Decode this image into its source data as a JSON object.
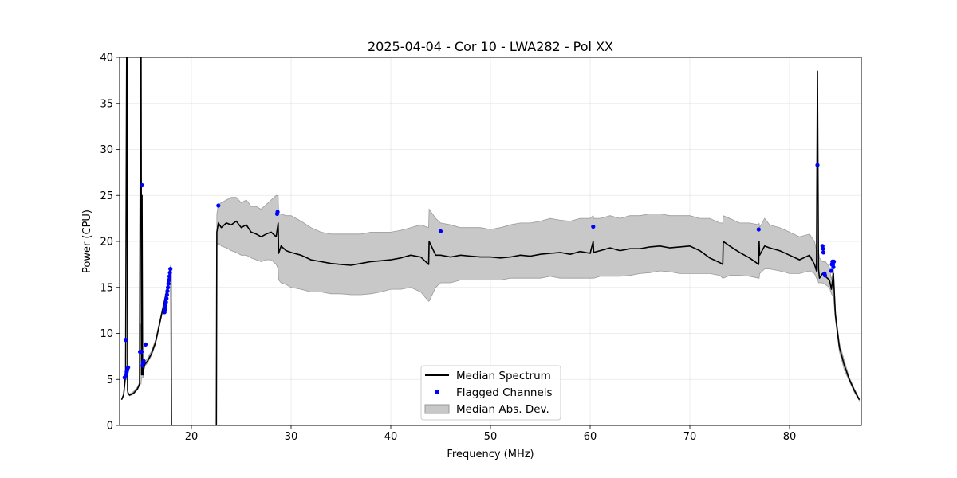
{
  "chart_data": {
    "type": "line",
    "title": "2025-04-04 - Cor 10 - LWA282 - Pol XX",
    "xlabel": "Frequency (MHz)",
    "ylabel": "Power (CPU)",
    "xlim": [
      12.8,
      87.2
    ],
    "ylim": [
      0,
      40
    ],
    "xticks": [
      20,
      30,
      40,
      50,
      60,
      70,
      80
    ],
    "yticks": [
      0,
      5,
      10,
      15,
      20,
      25,
      30,
      35,
      40
    ],
    "grid": true,
    "legend": {
      "placement": "bottom-center",
      "entries": [
        "Median Spectrum",
        "Flagged Channels",
        "Median Abs. Dev."
      ]
    },
    "colors": {
      "line": "#000000",
      "flagged": "#0000ff",
      "band_fill": "#c8c8c8",
      "band_edge": "#9a9a9a"
    },
    "series": [
      {
        "name": "Median Spectrum",
        "x": [
          13.0,
          13.2,
          13.4,
          13.5,
          13.55,
          13.6,
          13.65,
          13.8,
          14.2,
          14.6,
          14.8,
          14.9,
          14.95,
          15.0,
          15.05,
          15.1,
          15.15,
          15.2,
          15.3,
          15.6,
          16.0,
          16.4,
          16.8,
          17.2,
          17.5,
          17.8,
          17.95,
          18.0,
          18.05,
          22.5,
          22.55,
          22.7,
          23.0,
          23.5,
          24.0,
          24.5,
          25.0,
          25.5,
          26.0,
          26.5,
          27.0,
          27.5,
          28.0,
          28.5,
          28.7,
          28.75,
          29.0,
          29.5,
          30.0,
          31.0,
          32.0,
          33.0,
          34.0,
          35.0,
          36.0,
          37.0,
          38.0,
          39.0,
          40.0,
          41.0,
          42.0,
          43.0,
          43.8,
          43.85,
          44.5,
          45.0,
          46.0,
          47.0,
          48.0,
          49.0,
          50.0,
          51.0,
          52.0,
          53.0,
          54.0,
          55.0,
          56.0,
          57.0,
          58.0,
          59.0,
          60.0,
          60.3,
          60.35,
          61.0,
          62.0,
          63.0,
          64.0,
          65.0,
          66.0,
          67.0,
          68.0,
          69.0,
          70.0,
          71.0,
          72.0,
          73.0,
          73.3,
          73.35,
          74.0,
          75.0,
          76.0,
          76.9,
          76.95,
          77.0,
          77.5,
          78.0,
          79.0,
          80.0,
          81.0,
          82.0,
          82.5,
          82.7,
          82.8,
          82.9,
          83.0,
          83.3,
          83.6,
          84.0,
          84.2,
          84.4,
          84.6,
          85.0,
          85.5,
          86.0,
          86.5,
          87.0
        ],
        "y": [
          2.8,
          3.3,
          5.5,
          40.0,
          40.0,
          3.8,
          3.5,
          3.3,
          3.5,
          4.0,
          4.5,
          40.0,
          40.0,
          5.5,
          25.0,
          5.5,
          5.5,
          6.0,
          6.6,
          7.0,
          7.8,
          9.0,
          11.0,
          13.0,
          14.5,
          16.5,
          17.2,
          0.0,
          0.0,
          0.0,
          21.0,
          22.0,
          21.5,
          22.0,
          21.8,
          22.2,
          21.5,
          21.8,
          21.0,
          20.8,
          20.5,
          20.8,
          21.0,
          20.5,
          22.0,
          18.7,
          19.5,
          19.0,
          18.8,
          18.5,
          18.0,
          17.8,
          17.6,
          17.5,
          17.4,
          17.6,
          17.8,
          17.9,
          18.0,
          18.2,
          18.5,
          18.3,
          17.5,
          20.0,
          18.5,
          18.5,
          18.3,
          18.5,
          18.4,
          18.3,
          18.3,
          18.2,
          18.3,
          18.5,
          18.4,
          18.6,
          18.7,
          18.8,
          18.6,
          18.9,
          18.7,
          20.0,
          18.8,
          19.0,
          19.3,
          19.0,
          19.2,
          19.2,
          19.4,
          19.5,
          19.3,
          19.4,
          19.5,
          19.0,
          18.2,
          17.7,
          17.5,
          20.0,
          19.5,
          18.8,
          18.2,
          17.5,
          20.0,
          18.5,
          19.5,
          19.3,
          19.0,
          18.5,
          18.0,
          18.5,
          17.5,
          16.8,
          38.5,
          17.0,
          16.0,
          16.5,
          16.2,
          15.8,
          14.8,
          16.5,
          12.0,
          8.5,
          6.5,
          5.0,
          3.8,
          2.8
        ],
        "mad_lower": [
          2.8,
          3.2,
          5.0,
          5.0,
          5.0,
          3.6,
          3.4,
          3.2,
          3.4,
          3.9,
          4.4,
          4.5,
          4.5,
          5.2,
          5.2,
          5.2,
          5.2,
          5.8,
          6.4,
          6.8,
          7.6,
          8.8,
          10.8,
          12.8,
          14.3,
          16.3,
          17.0,
          0.0,
          0.0,
          0.0,
          19.5,
          19.8,
          19.5,
          19.3,
          19.0,
          18.8,
          18.5,
          18.5,
          18.2,
          18.0,
          17.8,
          18.0,
          18.0,
          17.5,
          17.0,
          15.8,
          15.5,
          15.3,
          15.0,
          14.8,
          14.5,
          14.5,
          14.3,
          14.3,
          14.2,
          14.2,
          14.3,
          14.5,
          14.8,
          14.8,
          15.0,
          14.5,
          13.5,
          13.5,
          15.0,
          15.5,
          15.5,
          15.8,
          15.8,
          15.8,
          15.8,
          15.8,
          16.0,
          16.0,
          16.0,
          16.0,
          16.2,
          16.0,
          16.0,
          16.0,
          16.0,
          16.0,
          16.0,
          16.2,
          16.2,
          16.2,
          16.3,
          16.5,
          16.6,
          16.8,
          16.7,
          16.5,
          16.5,
          16.5,
          16.5,
          16.3,
          16.0,
          16.0,
          16.3,
          16.3,
          16.2,
          16.0,
          16.0,
          16.5,
          17.0,
          17.0,
          16.8,
          16.5,
          16.5,
          16.8,
          16.5,
          16.0,
          16.0,
          15.5,
          15.5,
          15.5,
          15.3,
          15.0,
          14.3,
          14.0,
          11.5,
          8.0,
          6.0,
          4.8,
          3.6,
          2.7
        ],
        "mad_upper": [
          2.9,
          3.5,
          6.0,
          6.0,
          6.0,
          4.0,
          3.6,
          3.4,
          3.7,
          4.2,
          4.7,
          11.0,
          11.0,
          5.8,
          5.8,
          5.8,
          5.8,
          6.3,
          6.9,
          7.3,
          8.1,
          9.3,
          11.3,
          13.3,
          14.8,
          16.8,
          17.5,
          0.0,
          0.0,
          0.0,
          23.0,
          24.0,
          24.2,
          24.5,
          24.8,
          24.8,
          24.2,
          24.5,
          23.8,
          23.8,
          23.5,
          24.0,
          24.5,
          25.0,
          25.0,
          23.0,
          23.0,
          22.8,
          22.8,
          22.2,
          21.5,
          21.0,
          20.8,
          20.8,
          20.8,
          20.8,
          21.0,
          21.0,
          21.0,
          21.2,
          21.5,
          21.8,
          21.5,
          23.5,
          22.5,
          22.0,
          21.8,
          21.5,
          21.5,
          21.5,
          21.3,
          21.5,
          21.8,
          22.0,
          22.0,
          22.2,
          22.5,
          22.3,
          22.2,
          22.5,
          22.5,
          22.8,
          22.5,
          22.5,
          22.8,
          22.5,
          22.8,
          22.8,
          23.0,
          23.0,
          22.8,
          22.8,
          22.8,
          22.5,
          22.5,
          22.0,
          22.0,
          22.8,
          22.5,
          22.0,
          22.0,
          21.8,
          22.0,
          21.5,
          22.5,
          21.8,
          21.5,
          21.0,
          20.5,
          20.8,
          20.0,
          19.0,
          19.0,
          19.0,
          18.2,
          17.8,
          17.8,
          17.2,
          15.8,
          17.2,
          12.5,
          9.0,
          7.0,
          5.2,
          4.0,
          2.9
        ]
      },
      {
        "name": "Flagged Channels",
        "x": [
          13.3,
          13.4,
          13.45,
          13.5,
          13.55,
          13.6,
          13.65,
          15.05,
          14.85,
          15.0,
          15.1,
          15.15,
          15.2,
          15.4,
          17.3,
          17.35,
          17.4,
          17.45,
          17.5,
          17.55,
          17.6,
          17.65,
          17.7,
          17.75,
          17.8,
          17.85,
          17.9,
          22.7,
          28.6,
          28.65,
          45.0,
          60.3,
          76.9,
          82.8,
          83.3,
          83.35,
          83.4,
          83.5,
          83.55,
          84.2,
          84.25,
          84.3,
          84.35,
          84.4,
          84.45
        ],
        "y": [
          5.2,
          9.3,
          5.5,
          5.8,
          6.0,
          6.2,
          6.3,
          26.1,
          8.0,
          8.0,
          6.5,
          6.8,
          7.0,
          8.8,
          12.3,
          12.6,
          13.0,
          13.4,
          13.8,
          14.2,
          14.6,
          15.0,
          15.4,
          15.8,
          16.2,
          16.6,
          17.0,
          23.9,
          23.0,
          23.2,
          21.1,
          21.6,
          21.3,
          28.3,
          19.5,
          19.2,
          18.8,
          16.5,
          16.3,
          16.8,
          17.5,
          17.8,
          17.5,
          17.2,
          17.8
        ]
      }
    ]
  }
}
